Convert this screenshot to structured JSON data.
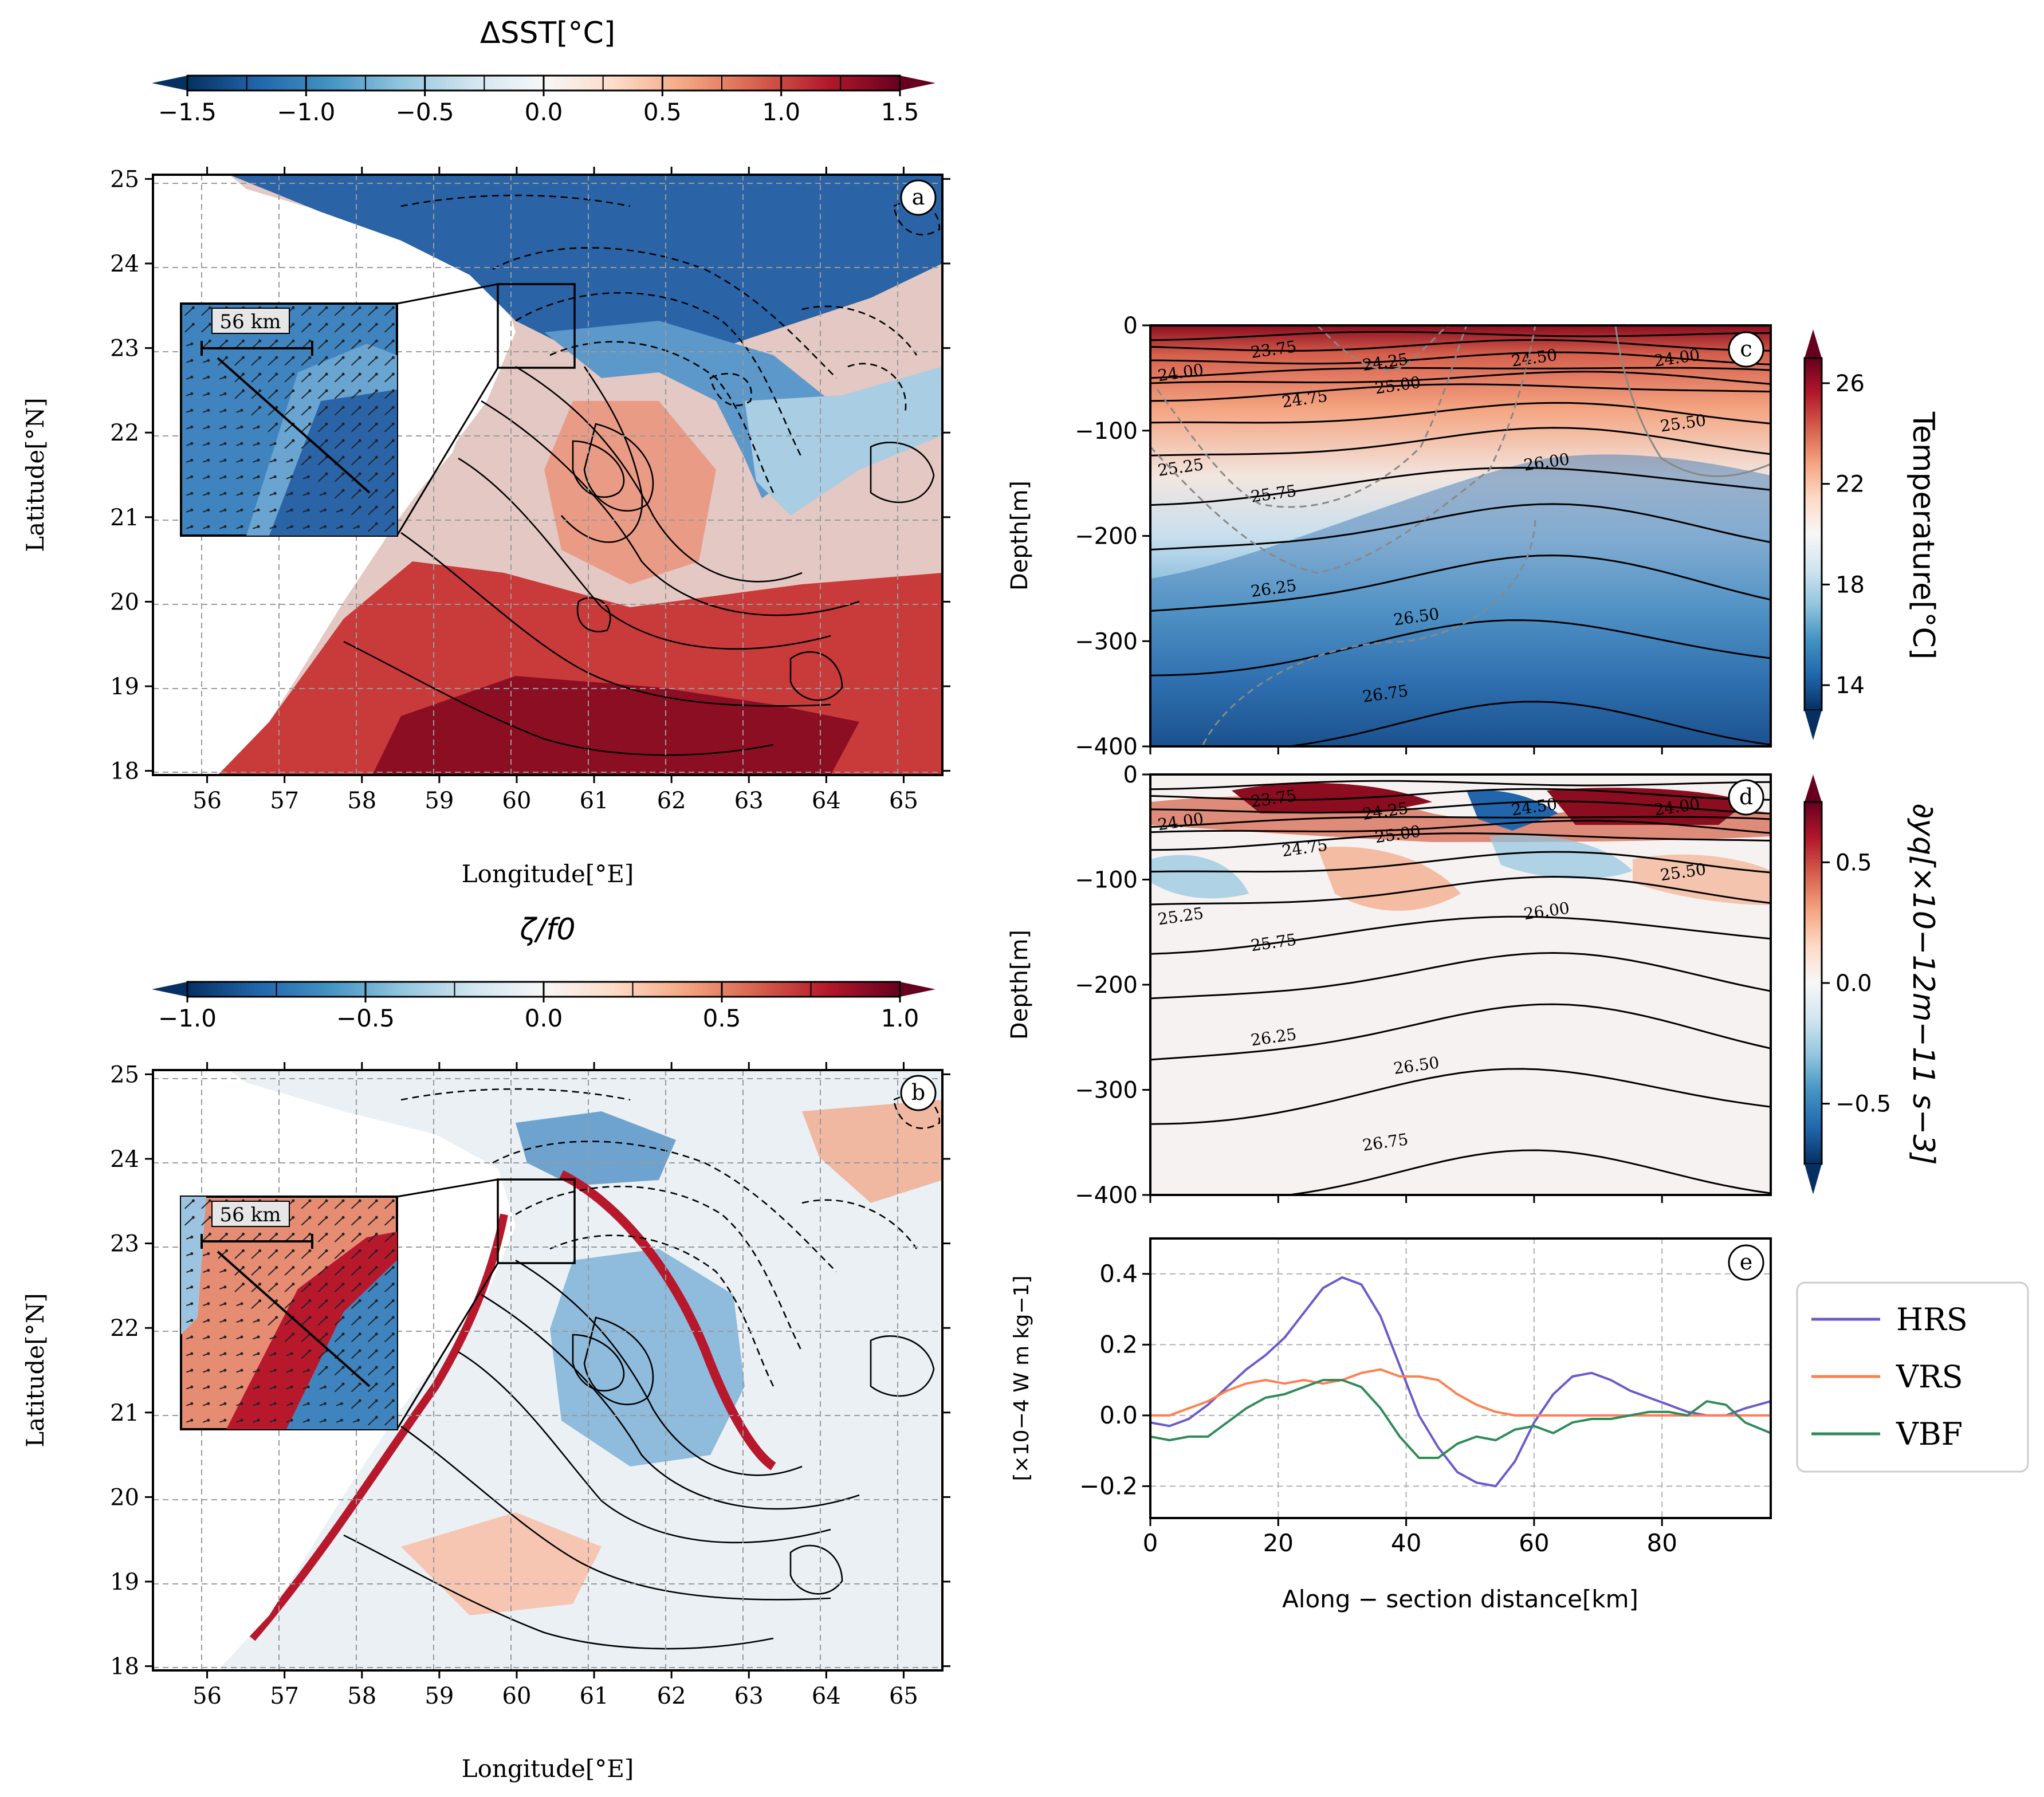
{
  "colors": {
    "rdbu": [
      "#053061",
      "#2166ac",
      "#4393c3",
      "#92c5de",
      "#d1e5f0",
      "#f7f7f7",
      "#fddbc7",
      "#f4a582",
      "#d6604d",
      "#b2182b",
      "#67001f"
    ],
    "hrs": "#6a5acd",
    "vrs": "#ff7f50",
    "vbf": "#2e8b57",
    "grid": "#b0b0b0",
    "land": "#ffffff"
  },
  "chart_data": [
    {
      "panel": "a",
      "type": "heatmap",
      "colorbar": {
        "title": "ΔSST[°C]",
        "ticks": [
          "−1.5",
          "−1.0",
          "−0.5",
          "0.0",
          "0.5",
          "1.0",
          "1.5"
        ],
        "range": [
          -1.5,
          1.5
        ],
        "extend": "both",
        "cmap": "RdBu_r"
      },
      "xlabel": "Longitude[°E]",
      "ylabel": "Latitude[°N]",
      "xlim": [
        55.3,
        65.5
      ],
      "ylim": [
        17.95,
        25.05
      ],
      "xticks": [
        "56",
        "57",
        "58",
        "59",
        "60",
        "61",
        "62",
        "63",
        "64",
        "65"
      ],
      "yticks": [
        "18",
        "19",
        "20",
        "21",
        "22",
        "23",
        "24",
        "25"
      ],
      "grid": true,
      "inset_box": {
        "lon": [
          59.85,
          60.85
        ],
        "lat": [
          22.8,
          23.8
        ]
      },
      "inset_scale_label": "56 km",
      "panel_label": "a"
    },
    {
      "panel": "b",
      "type": "heatmap",
      "colorbar": {
        "title": "ζ/f0",
        "ticks": [
          "−1.0",
          "−0.5",
          "0.0",
          "0.5",
          "1.0"
        ],
        "range": [
          -1.0,
          1.0
        ],
        "extend": "both",
        "cmap": "RdBu_r"
      },
      "xlabel": "Longitude[°E]",
      "ylabel": "Latitude[°N]",
      "xlim": [
        55.3,
        65.5
      ],
      "ylim": [
        17.95,
        25.05
      ],
      "xticks": [
        "56",
        "57",
        "58",
        "59",
        "60",
        "61",
        "62",
        "63",
        "64",
        "65"
      ],
      "yticks": [
        "18",
        "19",
        "20",
        "21",
        "22",
        "23",
        "24",
        "25"
      ],
      "grid": true,
      "inset_box": {
        "lon": [
          59.85,
          60.85
        ],
        "lat": [
          22.8,
          23.8
        ]
      },
      "inset_scale_label": "56 km",
      "panel_label": "b"
    },
    {
      "panel": "c",
      "type": "heatmap",
      "colorbar": {
        "title": "Temperature[°C]",
        "ticks": [
          "14",
          "18",
          "22",
          "26"
        ],
        "range": [
          13,
          27
        ],
        "extend": "both",
        "cmap": "RdBu_r"
      },
      "ylabel": "Depth[m]",
      "xlim": [
        0,
        97
      ],
      "ylim": [
        -400,
        0
      ],
      "yticks": [
        "0",
        "−100",
        "−200",
        "−300",
        "−400"
      ],
      "isopycnal_labels": [
        "23.75",
        "24.00",
        "24.25",
        "24.50",
        "24.75",
        "25.00",
        "24.00",
        "25.25",
        "25.50",
        "25.75",
        "26.00",
        "26.25",
        "26.50",
        "26.75"
      ],
      "panel_label": "c"
    },
    {
      "panel": "d",
      "type": "heatmap",
      "colorbar": {
        "title": "∂yq[×10−12m−11 s−3]",
        "ticks": [
          "−0.5",
          "0.0",
          "0.5"
        ],
        "range": [
          -0.75,
          0.75
        ],
        "extend": "both",
        "cmap": "RdBu_r"
      },
      "ylabel": "Depth[m]",
      "xlim": [
        0,
        97
      ],
      "ylim": [
        -400,
        0
      ],
      "yticks": [
        "0",
        "−100",
        "−200",
        "−300",
        "−400"
      ],
      "isopycnal_labels": [
        "23.75",
        "24.00",
        "24.25",
        "24.50",
        "24.75",
        "25.00",
        "24.00",
        "25.25",
        "25.50",
        "25.75",
        "26.00",
        "26.25",
        "26.50",
        "26.75"
      ],
      "panel_label": "d"
    },
    {
      "panel": "e",
      "type": "line",
      "xlabel": "Along − section distance[km]",
      "ylabel": "[×10−4 W m kg−1]",
      "xlim": [
        0,
        97
      ],
      "ylim": [
        -0.29,
        0.5
      ],
      "xticks": [
        "0",
        "20",
        "40",
        "60",
        "80"
      ],
      "yticks": [
        "−0.2",
        "0.0",
        "0.2",
        "0.4"
      ],
      "grid": true,
      "legend_position": "outside-right",
      "panel_label": "e",
      "series": [
        {
          "name": "HRS",
          "x": [
            0,
            3,
            6,
            9,
            12,
            15,
            18,
            21,
            24,
            27,
            30,
            33,
            36,
            39,
            42,
            45,
            48,
            51,
            54,
            57,
            60,
            63,
            66,
            69,
            72,
            75,
            78,
            81,
            84,
            87,
            90,
            93,
            97
          ],
          "y": [
            -0.02,
            -0.03,
            -0.01,
            0.03,
            0.08,
            0.13,
            0.17,
            0.22,
            0.29,
            0.36,
            0.39,
            0.37,
            0.28,
            0.14,
            0.0,
            -0.09,
            -0.16,
            -0.19,
            -0.2,
            -0.13,
            -0.02,
            0.06,
            0.11,
            0.12,
            0.1,
            0.07,
            0.05,
            0.03,
            0.01,
            0.0,
            0.0,
            0.02,
            0.04
          ]
        },
        {
          "name": "VRS",
          "x": [
            0,
            3,
            6,
            9,
            12,
            15,
            18,
            21,
            24,
            27,
            30,
            33,
            36,
            39,
            42,
            45,
            48,
            51,
            54,
            57,
            60,
            63,
            66,
            69,
            72,
            75,
            78,
            81,
            84,
            87,
            90,
            93,
            97
          ],
          "y": [
            0.0,
            0.0,
            0.02,
            0.04,
            0.07,
            0.09,
            0.1,
            0.09,
            0.1,
            0.09,
            0.1,
            0.12,
            0.13,
            0.11,
            0.11,
            0.1,
            0.06,
            0.03,
            0.01,
            0.0,
            0.0,
            0.0,
            0.0,
            0.0,
            0.0,
            0.0,
            0.0,
            0.0,
            0.0,
            0.0,
            0.0,
            0.0,
            0.0
          ]
        },
        {
          "name": "VBF",
          "x": [
            0,
            3,
            6,
            9,
            12,
            15,
            18,
            21,
            24,
            27,
            30,
            33,
            36,
            39,
            42,
            45,
            48,
            51,
            54,
            57,
            60,
            63,
            66,
            69,
            72,
            75,
            78,
            81,
            84,
            87,
            90,
            93,
            97
          ],
          "y": [
            -0.06,
            -0.07,
            -0.06,
            -0.06,
            -0.02,
            0.02,
            0.05,
            0.06,
            0.08,
            0.1,
            0.1,
            0.08,
            0.02,
            -0.06,
            -0.12,
            -0.12,
            -0.08,
            -0.06,
            -0.07,
            -0.04,
            -0.03,
            -0.05,
            -0.02,
            -0.01,
            -0.01,
            0.0,
            0.01,
            0.01,
            0.0,
            0.04,
            0.03,
            -0.02,
            -0.05
          ]
        }
      ]
    }
  ]
}
